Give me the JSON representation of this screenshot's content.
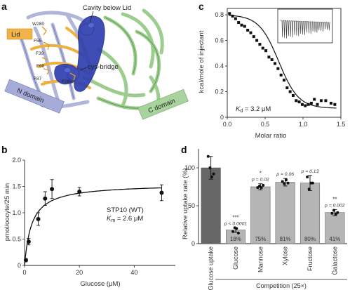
{
  "panels": {
    "a": {
      "label": "a",
      "annotations": {
        "cavity": "Cavity below Lid",
        "lid": "Lid",
        "n_domain": "N domain",
        "c_domain": "C domain",
        "cys_bridge": "cys-bridge",
        "residues": [
          "W280",
          "F39",
          "F55",
          "F60",
          "F87",
          "F286"
        ]
      },
      "colors": {
        "lid": "#f2b44a",
        "n_domain": "#a6acd8",
        "c_domain": "#a9d39d",
        "cavity": "#2f3fb0"
      }
    },
    "b": {
      "label": "b",
      "legend_line1": "STP10 (WT)",
      "legend_line2": "K",
      "legend_line2_sub": "m",
      "legend_line2_rest": " = 2.6 μM"
    },
    "c": {
      "label": "c",
      "kd_main": "K",
      "kd_sub": "d",
      "kd_rest": " = 3.2 μM"
    },
    "d": {
      "label": "d",
      "group_label": "Competition (25×)"
    }
  },
  "chart_data": [
    {
      "panel": "b",
      "type": "scatter",
      "xlabel": "Glucose (μM)",
      "ylabel": "pmol/oocyte/25 min",
      "xlim": [
        0,
        55
      ],
      "ylim": [
        0,
        2
      ],
      "xticks": [
        0,
        20,
        40
      ],
      "yticks": [
        0,
        0.5,
        1.0,
        1.5,
        2.0
      ],
      "ytick_labels": [
        "0",
        "0.5",
        "1.0",
        "1.5",
        "2.0"
      ],
      "x": [
        0.5,
        1.5,
        5,
        7.5,
        10,
        20,
        50
      ],
      "y": [
        0.1,
        0.45,
        0.88,
        1.27,
        1.45,
        1.4,
        1.38
      ],
      "err": [
        0.03,
        0.06,
        0.12,
        0.13,
        0.18,
        0.08,
        0.15
      ],
      "fit": {
        "model": "michaelis-menten",
        "vmax": 1.55,
        "km": 2.6
      },
      "grid": false
    },
    {
      "panel": "c",
      "type": "scatter",
      "xlabel": "Molar ratio",
      "ylabel": "kcal/mole of injectant",
      "xlim": [
        0,
        1.5
      ],
      "ylim": [
        0,
        0.85
      ],
      "xticks": [
        0.0,
        0.5,
        1.0,
        1.5
      ],
      "xtick_labels": [
        "0.0",
        "0.5",
        "1.0",
        "1.5"
      ],
      "yticks": [
        0,
        0.2,
        0.4,
        0.6,
        0.8
      ],
      "ytick_labels": [
        "0",
        "0.2",
        "0.4",
        "0.6",
        "0.8"
      ],
      "x": [
        0.03,
        0.07,
        0.11,
        0.15,
        0.19,
        0.23,
        0.27,
        0.31,
        0.35,
        0.39,
        0.43,
        0.47,
        0.51,
        0.55,
        0.59,
        0.63,
        0.67,
        0.71,
        0.75,
        0.79,
        0.83,
        0.87,
        0.91,
        0.95,
        0.99,
        1.03,
        1.07,
        1.11,
        1.15,
        1.19,
        1.24,
        1.3,
        1.37,
        1.42
      ],
      "y": [
        0.81,
        0.79,
        0.77,
        0.74,
        0.72,
        0.71,
        0.68,
        0.66,
        0.63,
        0.6,
        0.57,
        0.54,
        0.52,
        0.47,
        0.45,
        0.42,
        0.38,
        0.33,
        0.29,
        0.23,
        0.2,
        0.17,
        0.13,
        0.12,
        0.1,
        0.09,
        0.1,
        0.11,
        0.14,
        0.1,
        0.13,
        0.13,
        0.11,
        0.1
      ],
      "fit": {
        "model": "sigmoid",
        "top": 0.8,
        "bottom": 0.07,
        "x50": 0.68,
        "slope": 0.13
      },
      "inset": "raw thermogram (downward injection peaks)",
      "grid": false
    },
    {
      "panel": "d",
      "type": "bar",
      "ylabel": "Relative uptake rate (%)",
      "ylim": [
        0,
        125
      ],
      "yticks": [
        0,
        50,
        100
      ],
      "categories": [
        "Glucose uptake",
        "Glucose",
        "Mannose",
        "Xylose",
        "Fructose",
        "Galactose"
      ],
      "values": [
        100,
        18,
        75,
        81,
        80,
        41
      ],
      "err": [
        15,
        3,
        4,
        5,
        10,
        4
      ],
      "points": [
        [
          115,
          100,
          88,
          92
        ],
        [
          16,
          21,
          20,
          14
        ],
        [
          74,
          76,
          74,
          77
        ],
        [
          82,
          79,
          84,
          80
        ],
        [
          88,
          72,
          80,
          80
        ],
        [
          40,
          44,
          39,
          41
        ]
      ],
      "pct_labels": [
        "",
        "18%",
        "75%",
        "81%",
        "80%",
        "41%"
      ],
      "significance": [
        "",
        "***",
        "*",
        "",
        "",
        "**"
      ],
      "p_values": [
        "",
        "p < 0.0001",
        "p = 0.02",
        "p = 0.06",
        "p = 0.13",
        "p = 0.002"
      ],
      "colors": {
        "control": "#666666",
        "competition": "#b5b5b5"
      }
    }
  ]
}
